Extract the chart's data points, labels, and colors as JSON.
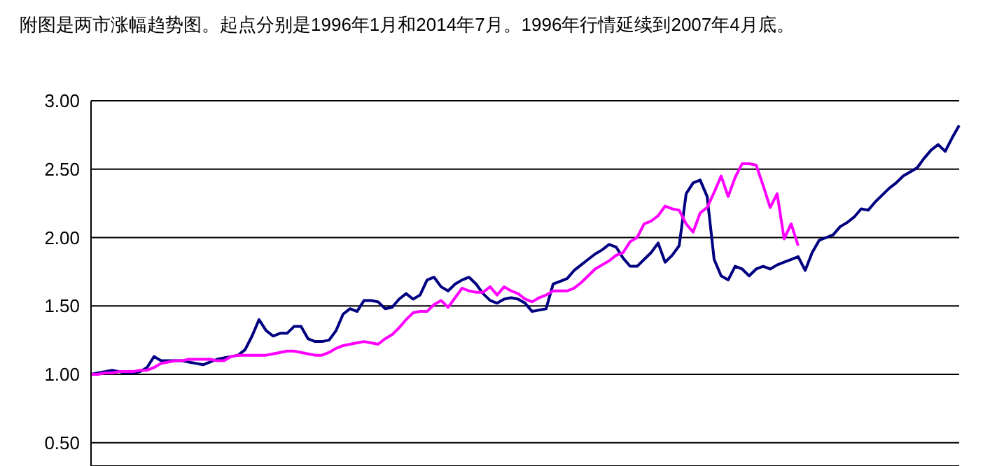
{
  "chart_data": {
    "type": "line",
    "title": "附图是两市涨幅趋势图。起点分别是1996年1月和2014年7月。1996年行情延续到2007年4月底。",
    "categories": [
      null,
      null,
      null,
      null,
      null,
      null,
      null,
      null,
      null,
      null,
      null,
      null,
      null,
      null,
      null,
      null,
      null,
      null,
      null,
      null,
      null,
      null,
      null,
      null,
      null,
      null,
      null,
      null,
      null,
      null,
      null,
      null,
      null,
      null,
      null,
      null,
      null,
      null,
      null,
      null,
      null,
      null,
      null,
      null,
      null,
      null,
      null,
      null,
      null,
      null,
      null,
      null,
      null,
      null,
      null,
      null,
      null,
      null,
      null,
      null,
      null,
      null,
      null,
      null,
      null,
      null,
      null,
      null,
      null,
      null,
      null,
      null,
      null,
      null,
      null,
      null,
      null,
      null,
      null,
      null,
      null,
      null,
      null,
      null,
      null,
      null,
      null,
      null,
      null,
      null,
      null,
      null,
      null,
      null,
      null,
      null,
      null,
      null,
      null,
      null,
      null,
      null,
      null,
      null,
      null,
      null,
      null,
      null,
      null,
      null,
      null,
      null,
      null,
      null,
      null,
      null,
      null,
      null,
      null,
      null,
      null,
      null,
      null,
      null,
      null
    ],
    "series": [
      {
        "color": "#000080",
        "values": [
          1.0,
          1.01,
          1.02,
          1.03,
          1.02,
          1.01,
          1.01,
          1.02,
          1.05,
          1.13,
          1.1,
          1.1,
          1.1,
          1.1,
          1.09,
          1.08,
          1.07,
          1.09,
          1.11,
          1.12,
          1.13,
          1.14,
          1.18,
          1.28,
          1.4,
          1.32,
          1.28,
          1.3,
          1.3,
          1.35,
          1.35,
          1.26,
          1.24,
          1.24,
          1.25,
          1.32,
          1.44,
          1.48,
          1.46,
          1.54,
          1.54,
          1.53,
          1.48,
          1.49,
          1.55,
          1.59,
          1.55,
          1.58,
          1.69,
          1.71,
          1.64,
          1.61,
          1.66,
          1.69,
          1.71,
          1.66,
          1.59,
          1.54,
          1.52,
          1.55,
          1.56,
          1.55,
          1.52,
          1.46,
          1.47,
          1.48,
          1.66,
          1.68,
          1.7,
          1.76,
          1.8,
          1.84,
          1.88,
          1.91,
          1.95,
          1.93,
          1.85,
          1.79,
          1.79,
          1.84,
          1.89,
          1.96,
          1.82,
          1.87,
          1.94,
          2.32,
          2.4,
          2.42,
          2.3,
          1.84,
          1.72,
          1.69,
          1.79,
          1.77,
          1.72,
          1.77,
          1.79,
          1.77,
          1.8,
          1.82,
          1.84,
          1.86,
          1.76,
          1.89,
          1.98,
          2.0,
          2.02,
          2.08,
          2.11,
          2.15,
          2.21,
          2.2,
          2.26,
          2.31,
          2.36,
          2.4,
          2.45,
          2.48,
          2.51,
          2.58,
          2.64,
          2.68,
          2.63,
          2.73,
          2.82
        ]
      },
      {
        "color": "#ff00ff",
        "values": [
          1.0,
          1.0,
          1.01,
          1.01,
          1.02,
          1.02,
          1.02,
          1.03,
          1.03,
          1.05,
          1.08,
          1.09,
          1.1,
          1.1,
          1.11,
          1.11,
          1.11,
          1.11,
          1.1,
          1.1,
          1.13,
          1.14,
          1.14,
          1.14,
          1.14,
          1.14,
          1.15,
          1.16,
          1.17,
          1.17,
          1.16,
          1.15,
          1.14,
          1.14,
          1.16,
          1.19,
          1.21,
          1.22,
          1.23,
          1.24,
          1.23,
          1.22,
          1.26,
          1.29,
          1.34,
          1.4,
          1.45,
          1.46,
          1.46,
          1.51,
          1.54,
          1.49,
          1.56,
          1.63,
          1.61,
          1.6,
          1.6,
          1.64,
          1.58,
          1.64,
          1.61,
          1.59,
          1.55,
          1.53,
          1.56,
          1.58,
          1.61,
          1.61,
          1.61,
          1.63,
          1.67,
          1.72,
          1.77,
          1.8,
          1.83,
          1.87,
          1.89,
          1.97,
          2.0,
          2.1,
          2.12,
          2.16,
          2.23,
          2.21,
          2.2,
          2.1,
          2.04,
          2.18,
          2.22,
          2.33,
          2.45,
          2.3,
          2.44,
          2.54,
          2.54,
          2.53,
          2.38,
          2.22,
          2.32,
          1.99,
          2.1,
          1.94,
          null,
          null,
          null,
          null,
          null,
          null,
          null,
          null,
          null,
          null,
          null,
          null,
          null,
          null,
          null,
          null,
          null,
          null,
          null,
          null,
          null,
          null,
          null
        ]
      }
    ],
    "ylim": [
      0.33,
      3.0
    ],
    "yticks": [
      {
        "value": 0.5,
        "label": "0.50"
      },
      {
        "value": 1.0,
        "label": "1.00"
      },
      {
        "value": 1.5,
        "label": "1.50"
      },
      {
        "value": 2.0,
        "label": "2.00"
      },
      {
        "value": 2.5,
        "label": "2.50"
      },
      {
        "value": 3.0,
        "label": "3.00"
      }
    ],
    "grid": "y",
    "tick_labels": "y"
  }
}
